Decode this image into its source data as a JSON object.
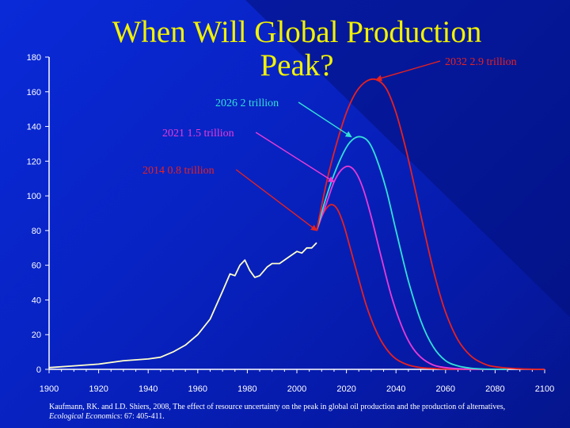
{
  "title": "When Will Global Production Peak?",
  "colors": {
    "background": "#0b26cc",
    "title": "#f2f200",
    "text": "#ffffff",
    "historical": "#ffffcc",
    "peak_2014": "#e8211f",
    "peak_2021": "#e93bd6",
    "peak_2026": "#33e0d6",
    "peak_2032": "#e8211f"
  },
  "chart_data": {
    "type": "line",
    "title": "When Will Global Production Peak?",
    "xlabel": "",
    "ylabel": "",
    "xlim": [
      1900,
      2100
    ],
    "ylim": [
      0,
      180
    ],
    "x_ticks": [
      1900,
      1920,
      1940,
      1960,
      1980,
      2000,
      2020,
      2040,
      2060,
      2080,
      2100
    ],
    "y_ticks": [
      0,
      20,
      40,
      60,
      80,
      100,
      120,
      140,
      160,
      180
    ],
    "grid": false,
    "legend": "none",
    "series": [
      {
        "color_key": "historical",
        "x": [
          1900,
          1910,
          1920,
          1930,
          1940,
          1945,
          1950,
          1955,
          1960,
          1965,
          1970,
          1973,
          1975,
          1977,
          1979,
          1981,
          1983,
          1985,
          1988,
          1990,
          1993,
          1996,
          2000,
          2002,
          2004,
          2006,
          2008
        ],
        "y": [
          1,
          2,
          3,
          5,
          6,
          7,
          10,
          14,
          20,
          29,
          45,
          55,
          54,
          60,
          63,
          57,
          53,
          54,
          59,
          61,
          61,
          64,
          68,
          67,
          70,
          70,
          73
        ]
      },
      {
        "color_key": "peak_2014",
        "x": [
          2008,
          2010,
          2012,
          2014,
          2016,
          2018,
          2020,
          2024,
          2028,
          2032,
          2036,
          2040,
          2045,
          2050,
          2055,
          2060,
          2070,
          2080
        ],
        "y": [
          80,
          88,
          93,
          95,
          93,
          87,
          78,
          57,
          37,
          22,
          12,
          6,
          2.5,
          1,
          0.5,
          0.2,
          0,
          0
        ]
      },
      {
        "color_key": "peak_2021",
        "x": [
          2008,
          2012,
          2015,
          2018,
          2021,
          2024,
          2027,
          2030,
          2034,
          2038,
          2042,
          2046,
          2050,
          2055,
          2060,
          2066,
          2075,
          2085
        ],
        "y": [
          80,
          96,
          108,
          115,
          117,
          113,
          103,
          88,
          65,
          43,
          26,
          14,
          7,
          2.5,
          1,
          0.3,
          0,
          0
        ]
      },
      {
        "color_key": "peak_2026",
        "x": [
          2008,
          2012,
          2016,
          2020,
          2023,
          2026,
          2029,
          2032,
          2036,
          2040,
          2045,
          2050,
          2055,
          2060,
          2065,
          2070,
          2075,
          2085
        ],
        "y": [
          80,
          100,
          116,
          128,
          133,
          134,
          131,
          122,
          104,
          80,
          51,
          28,
          13,
          5,
          2,
          0.7,
          0.2,
          0
        ]
      },
      {
        "color_key": "peak_2032",
        "x": [
          2008,
          2012,
          2016,
          2020,
          2024,
          2028,
          2032,
          2036,
          2040,
          2044,
          2048,
          2052,
          2056,
          2060,
          2065,
          2070,
          2075,
          2080,
          2090,
          2100
        ],
        "y": [
          80,
          108,
          130,
          148,
          160,
          166,
          167,
          162,
          148,
          127,
          102,
          76,
          52,
          33,
          17,
          8,
          3.5,
          1.5,
          0.3,
          0
        ]
      }
    ],
    "annotations": [
      {
        "text": "2014 0.8 trillion",
        "color_key": "peak_2014",
        "points_to": [
          2008,
          80
        ]
      },
      {
        "text": "2021 1.5 trillion",
        "color_key": "peak_2021",
        "points_to": [
          2015,
          108
        ]
      },
      {
        "text": "2026 2 trillion",
        "color_key": "peak_2026",
        "points_to": [
          2022,
          134
        ]
      },
      {
        "text": "2032 2.9 trillion",
        "color_key": "peak_2032",
        "points_to": [
          2032,
          167
        ]
      }
    ]
  },
  "citation": {
    "text": "Kaufmann, RK. and LD. Shiers, 2008, The effect of resource uncertainty on the peak in global oil production and the production of alternatives, ",
    "journal": "Ecological Economics",
    "pages": ": 67: 405-411."
  }
}
